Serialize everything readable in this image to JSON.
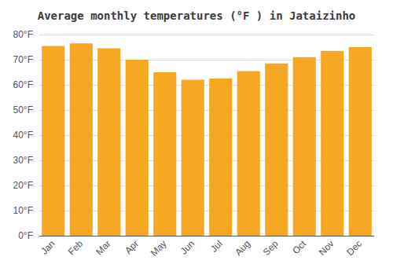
{
  "chart_data": {
    "type": "bar",
    "title": "Average monthly temperatures (°F ) in Jataizinho",
    "categories": [
      "Jan",
      "Feb",
      "Mar",
      "Apr",
      "May",
      "Jun",
      "Jul",
      "Aug",
      "Sep",
      "Oct",
      "Nov",
      "Dec"
    ],
    "values": [
      75.5,
      76.5,
      74.5,
      70.0,
      65.0,
      62.0,
      62.5,
      65.5,
      68.5,
      71.0,
      73.5,
      75.0
    ],
    "color": "#F5A623",
    "ylim": [
      0,
      80
    ],
    "yticks": [
      {
        "value": 0,
        "label": "0°F"
      },
      {
        "value": 10,
        "label": "10°F"
      },
      {
        "value": 20,
        "label": "20°F"
      },
      {
        "value": 30,
        "label": "30°F"
      },
      {
        "value": 40,
        "label": "40°F"
      },
      {
        "value": 50,
        "label": "50°F"
      },
      {
        "value": 60,
        "label": "60°F"
      },
      {
        "value": 70,
        "label": "70°F"
      },
      {
        "value": 80,
        "label": "80°F"
      }
    ],
    "grid": true
  }
}
